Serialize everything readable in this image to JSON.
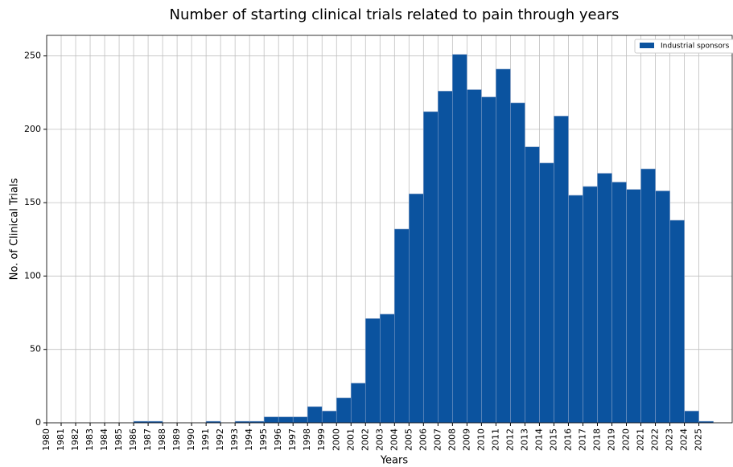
{
  "chart_data": {
    "type": "histogram",
    "title": "Number of starting clinical trials related to pain through years",
    "xlabel": "Years",
    "ylabel": "No. of Clinical Trials",
    "bins": [
      1980,
      1981,
      1982,
      1983,
      1984,
      1985,
      1986,
      1987,
      1988,
      1989,
      1990,
      1991,
      1992,
      1993,
      1994,
      1995,
      1996,
      1997,
      1998,
      1999,
      2000,
      2001,
      2002,
      2003,
      2004,
      2005,
      2006,
      2007,
      2008,
      2009,
      2010,
      2011,
      2012,
      2013,
      2014,
      2015,
      2016,
      2017,
      2018,
      2019,
      2020,
      2021,
      2022,
      2023,
      2024,
      2025,
      2026
    ],
    "series": [
      {
        "name": "Industrial sponsors",
        "color": "#0b539f",
        "values": [
          0,
          0,
          0,
          0,
          0,
          0,
          1,
          1,
          0,
          0,
          0,
          1,
          0,
          1,
          1,
          4,
          4,
          4,
          11,
          8,
          17,
          27,
          71,
          74,
          132,
          156,
          212,
          226,
          251,
          227,
          222,
          241,
          218,
          188,
          177,
          209,
          155,
          161,
          170,
          164,
          159,
          173,
          158,
          138,
          8,
          1
        ]
      }
    ],
    "xlim": [
      1980,
      2027.3
    ],
    "xticks": [
      1980,
      1981,
      1982,
      1983,
      1984,
      1985,
      1986,
      1987,
      1988,
      1989,
      1990,
      1991,
      1992,
      1993,
      1994,
      1995,
      1996,
      1997,
      1998,
      1999,
      2000,
      2001,
      2002,
      2003,
      2004,
      2005,
      2006,
      2007,
      2008,
      2009,
      2010,
      2011,
      2012,
      2013,
      2014,
      2015,
      2016,
      2017,
      2018,
      2019,
      2020,
      2021,
      2022,
      2023,
      2024,
      2025
    ],
    "ylim": [
      0,
      264
    ],
    "yticks": [
      0,
      50,
      100,
      150,
      200,
      250
    ],
    "grid": true,
    "legend": "upper right"
  }
}
